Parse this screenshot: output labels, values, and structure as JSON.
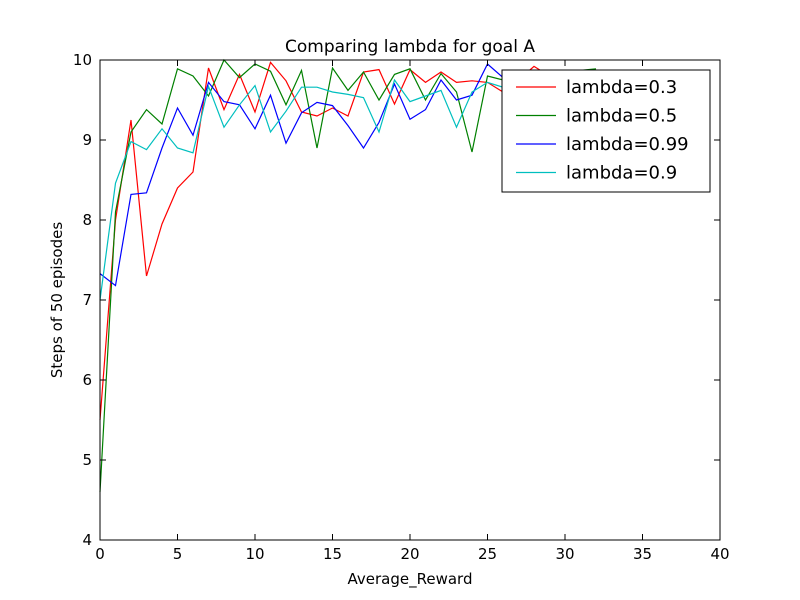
{
  "chart_data": {
    "type": "line",
    "title": "Comparing lambda for goal A",
    "xlabel": "Average_Reward",
    "ylabel": "Steps of 50 episodes",
    "xlim": [
      0,
      40
    ],
    "ylim": [
      4,
      10
    ],
    "xticks": [
      "0",
      "5",
      "10",
      "15",
      "20",
      "25",
      "30",
      "35",
      "40"
    ],
    "yticks": [
      "4",
      "5",
      "6",
      "7",
      "8",
      "9",
      "10"
    ],
    "grid": false,
    "legend_position": "top-right",
    "series": [
      {
        "name": "lambda=0.3",
        "color": "#ff0000",
        "x": [
          0,
          1,
          2,
          3,
          4,
          5,
          6,
          7,
          8,
          9,
          10,
          11,
          12,
          13,
          14,
          15,
          16,
          17,
          18,
          19,
          20,
          21,
          22,
          23,
          24,
          25,
          26,
          27,
          28,
          29,
          30,
          31,
          32
        ],
        "y": [
          5.5,
          8.0,
          9.25,
          7.3,
          7.95,
          8.4,
          8.6,
          9.9,
          9.38,
          9.82,
          9.35,
          9.97,
          9.74,
          9.35,
          9.3,
          9.4,
          9.3,
          9.85,
          9.88,
          9.45,
          9.88,
          9.72,
          9.85,
          9.72,
          9.74,
          9.72,
          9.6,
          9.75,
          9.92,
          9.8,
          9.85,
          9.8,
          9.88
        ]
      },
      {
        "name": "lambda=0.5",
        "color": "#008000",
        "x": [
          0,
          1,
          2,
          3,
          4,
          5,
          6,
          7,
          8,
          9,
          10,
          11,
          12,
          13,
          14,
          15,
          16,
          17,
          18,
          19,
          20,
          21,
          22,
          23,
          24,
          25,
          26,
          27,
          28,
          29,
          30,
          31,
          32
        ],
        "y": [
          4.6,
          8.1,
          9.1,
          9.38,
          9.2,
          9.89,
          9.8,
          9.55,
          10.0,
          9.78,
          9.95,
          9.86,
          9.44,
          9.87,
          8.9,
          9.9,
          9.62,
          9.85,
          9.5,
          9.82,
          9.89,
          9.5,
          9.83,
          9.6,
          8.85,
          9.8,
          9.75,
          9.82,
          9.86,
          9.8,
          9.85,
          9.87,
          9.89
        ]
      },
      {
        "name": "lambda=0.99",
        "color": "#0000ff",
        "x": [
          0,
          1,
          2,
          3,
          4,
          5,
          6,
          7,
          8,
          9,
          10,
          11,
          12,
          13,
          14,
          15,
          16,
          17,
          18,
          19,
          20,
          21,
          22,
          23,
          24,
          25,
          26,
          27,
          28,
          29,
          30,
          31,
          32
        ],
        "y": [
          7.33,
          7.18,
          8.32,
          8.34,
          8.9,
          9.4,
          9.06,
          9.72,
          9.48,
          9.44,
          9.14,
          9.56,
          8.96,
          9.34,
          9.47,
          9.43,
          9.18,
          8.9,
          9.22,
          9.7,
          9.26,
          9.38,
          9.75,
          9.5,
          9.56,
          9.95,
          9.78,
          9.74,
          9.8,
          9.82,
          9.84,
          9.8,
          9.85
        ]
      },
      {
        "name": "lambda=0.9",
        "color": "#00bfbf",
        "x": [
          0,
          1,
          2,
          3,
          4,
          5,
          6,
          7,
          8,
          9,
          10,
          11,
          12,
          13,
          14,
          15,
          16,
          17,
          18,
          19,
          20,
          21,
          22,
          23,
          24,
          25,
          26,
          27,
          28,
          29,
          30,
          31,
          32
        ],
        "y": [
          7.0,
          8.46,
          8.98,
          8.88,
          9.14,
          8.9,
          8.84,
          9.67,
          9.16,
          9.44,
          9.68,
          9.1,
          9.36,
          9.66,
          9.66,
          9.6,
          9.57,
          9.53,
          9.1,
          9.75,
          9.48,
          9.55,
          9.62,
          9.16,
          9.6,
          9.72,
          9.66,
          9.72,
          9.74,
          9.7,
          9.72,
          9.7,
          9.74
        ]
      }
    ]
  }
}
